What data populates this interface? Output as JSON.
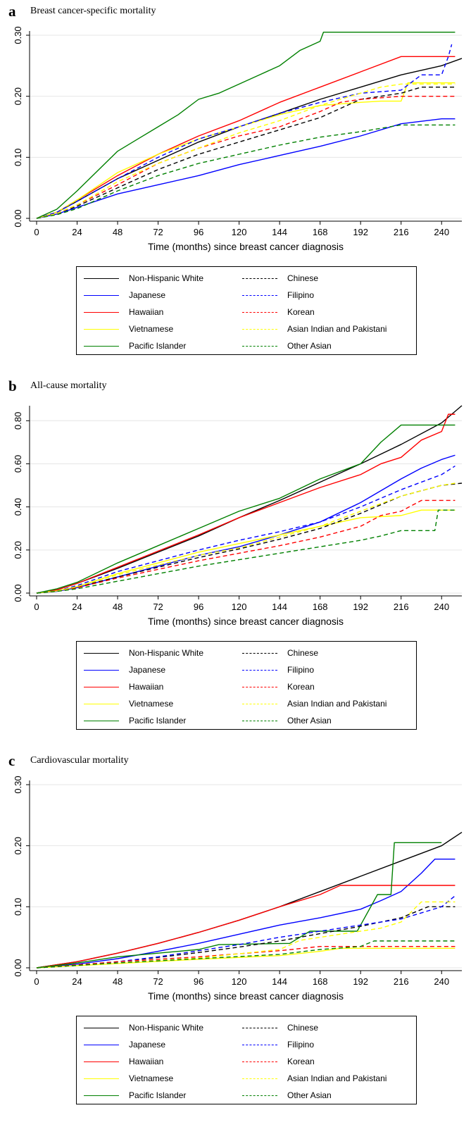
{
  "legend": [
    {
      "name": "Non-Hispanic White",
      "color": "#000000",
      "dashed": false
    },
    {
      "name": "Chinese",
      "color": "#000000",
      "dashed": true
    },
    {
      "name": "Japanese",
      "color": "#0000ff",
      "dashed": false
    },
    {
      "name": "Filipino",
      "color": "#0000ff",
      "dashed": true
    },
    {
      "name": "Hawaiian",
      "color": "#ff0000",
      "dashed": false
    },
    {
      "name": "Korean",
      "color": "#ff0000",
      "dashed": true
    },
    {
      "name": "Vietnamese",
      "color": "#ffff00",
      "dashed": false
    },
    {
      "name": "Asian Indian and Pakistani",
      "color": "#ffff00",
      "dashed": true
    },
    {
      "name": "Pacific Islander",
      "color": "#008000",
      "dashed": false
    },
    {
      "name": "Other Asian",
      "color": "#008000",
      "dashed": true
    }
  ],
  "chart_data": [
    {
      "type": "line",
      "letter": "a",
      "title": "Breast cancer-specific mortality",
      "xlabel": "Time (months) since breast cancer diagnosis",
      "ylabel": "",
      "xlim": [
        0,
        252
      ],
      "ylim": [
        0,
        0.3
      ],
      "xticks": [
        0,
        24,
        48,
        72,
        96,
        120,
        144,
        168,
        192,
        216,
        240
      ],
      "yticks": [
        0,
        0.1,
        0.2,
        0.3
      ],
      "ytick_labels": [
        "0.00",
        "0.10",
        "0.20",
        "0.30"
      ],
      "grid": true,
      "series": [
        {
          "name": "Non-Hispanic White",
          "x": [
            0,
            12,
            24,
            48,
            72,
            96,
            120,
            144,
            168,
            192,
            216,
            240,
            252
          ],
          "y": [
            0,
            0.01,
            0.028,
            0.065,
            0.095,
            0.125,
            0.15,
            0.172,
            0.195,
            0.215,
            0.235,
            0.25,
            0.262
          ]
        },
        {
          "name": "Japanese",
          "x": [
            0,
            12,
            24,
            48,
            72,
            96,
            120,
            144,
            168,
            192,
            216,
            240,
            248
          ],
          "y": [
            0,
            0.007,
            0.018,
            0.04,
            0.055,
            0.07,
            0.088,
            0.103,
            0.118,
            0.135,
            0.155,
            0.163,
            0.163
          ]
        },
        {
          "name": "Hawaiian",
          "x": [
            0,
            12,
            24,
            48,
            72,
            96,
            120,
            144,
            168,
            192,
            216,
            240,
            248
          ],
          "y": [
            0,
            0.01,
            0.03,
            0.07,
            0.105,
            0.135,
            0.16,
            0.19,
            0.215,
            0.24,
            0.265,
            0.265,
            0.265
          ]
        },
        {
          "name": "Vietnamese",
          "x": [
            0,
            12,
            24,
            48,
            72,
            96,
            120,
            144,
            168,
            192,
            204,
            216,
            220,
            248
          ],
          "y": [
            0,
            0.01,
            0.03,
            0.075,
            0.105,
            0.13,
            0.15,
            0.17,
            0.185,
            0.19,
            0.192,
            0.192,
            0.222,
            0.222
          ]
        },
        {
          "name": "Pacific Islander",
          "x": [
            0,
            12,
            24,
            48,
            60,
            72,
            84,
            96,
            108,
            120,
            132,
            144,
            156,
            168,
            170,
            200,
            220,
            232,
            240,
            248
          ],
          "y": [
            0,
            0.015,
            0.045,
            0.11,
            0.13,
            0.15,
            0.17,
            0.195,
            0.205,
            0.22,
            0.235,
            0.25,
            0.275,
            0.29,
            0.305,
            0.305,
            0.305,
            0.305,
            0.305,
            0.305
          ]
        },
        {
          "name": "Chinese",
          "x": [
            0,
            12,
            24,
            48,
            72,
            96,
            120,
            144,
            168,
            192,
            216,
            228,
            248
          ],
          "y": [
            0,
            0.008,
            0.02,
            0.05,
            0.08,
            0.105,
            0.125,
            0.145,
            0.165,
            0.195,
            0.205,
            0.215,
            0.215
          ]
        },
        {
          "name": "Filipino",
          "x": [
            0,
            12,
            24,
            48,
            72,
            96,
            120,
            144,
            168,
            192,
            216,
            228,
            240,
            244,
            246
          ],
          "y": [
            0,
            0.01,
            0.028,
            0.065,
            0.1,
            0.13,
            0.15,
            0.172,
            0.19,
            0.205,
            0.21,
            0.235,
            0.235,
            0.265,
            0.285
          ]
        },
        {
          "name": "Korean",
          "x": [
            0,
            12,
            24,
            48,
            72,
            96,
            120,
            144,
            168,
            180,
            192,
            216,
            248
          ],
          "y": [
            0,
            0.008,
            0.022,
            0.055,
            0.09,
            0.115,
            0.135,
            0.15,
            0.175,
            0.19,
            0.195,
            0.2,
            0.2
          ]
        },
        {
          "name": "Asian Indian and Pakistani",
          "x": [
            0,
            12,
            24,
            48,
            72,
            96,
            120,
            144,
            168,
            192,
            204,
            216,
            248
          ],
          "y": [
            0,
            0.008,
            0.022,
            0.06,
            0.09,
            0.115,
            0.14,
            0.16,
            0.185,
            0.205,
            0.215,
            0.22,
            0.22
          ]
        },
        {
          "name": "Other Asian",
          "x": [
            0,
            12,
            24,
            48,
            72,
            96,
            120,
            144,
            168,
            192,
            216,
            248
          ],
          "y": [
            0,
            0.006,
            0.016,
            0.045,
            0.07,
            0.09,
            0.105,
            0.12,
            0.133,
            0.142,
            0.153,
            0.153
          ]
        }
      ]
    },
    {
      "type": "line",
      "letter": "b",
      "title": "All-cause mortality",
      "xlabel": "Time (months) since breast cancer diagnosis",
      "ylabel": "",
      "xlim": [
        0,
        252
      ],
      "ylim": [
        0,
        0.85
      ],
      "xticks": [
        0,
        24,
        48,
        72,
        96,
        120,
        144,
        168,
        192,
        216,
        240
      ],
      "yticks": [
        0,
        0.2,
        0.4,
        0.6,
        0.8
      ],
      "ytick_labels": [
        "0.00",
        "0.20",
        "0.40",
        "0.60",
        "0.80"
      ],
      "grid": true,
      "series": [
        {
          "name": "Non-Hispanic White",
          "x": [
            0,
            12,
            24,
            48,
            72,
            96,
            120,
            144,
            168,
            192,
            216,
            240,
            252
          ],
          "y": [
            0,
            0.015,
            0.045,
            0.115,
            0.19,
            0.265,
            0.35,
            0.43,
            0.515,
            0.6,
            0.69,
            0.79,
            0.87
          ]
        },
        {
          "name": "Japanese",
          "x": [
            0,
            12,
            24,
            48,
            72,
            96,
            120,
            144,
            168,
            192,
            216,
            228,
            240,
            248
          ],
          "y": [
            0,
            0.008,
            0.025,
            0.075,
            0.125,
            0.175,
            0.215,
            0.27,
            0.33,
            0.42,
            0.53,
            0.58,
            0.62,
            0.64
          ]
        },
        {
          "name": "Hawaiian",
          "x": [
            0,
            12,
            24,
            48,
            72,
            96,
            120,
            144,
            168,
            192,
            204,
            216,
            228,
            240,
            244,
            248
          ],
          "y": [
            0,
            0.015,
            0.045,
            0.12,
            0.195,
            0.27,
            0.35,
            0.42,
            0.49,
            0.55,
            0.6,
            0.63,
            0.71,
            0.75,
            0.83,
            0.83
          ]
        },
        {
          "name": "Vietnamese",
          "x": [
            0,
            12,
            24,
            48,
            72,
            96,
            120,
            144,
            168,
            192,
            216,
            228,
            248
          ],
          "y": [
            0,
            0.01,
            0.03,
            0.09,
            0.14,
            0.19,
            0.23,
            0.27,
            0.31,
            0.35,
            0.36,
            0.385,
            0.385
          ]
        },
        {
          "name": "Pacific Islander",
          "x": [
            0,
            12,
            24,
            48,
            72,
            96,
            120,
            144,
            168,
            192,
            204,
            216,
            240,
            248
          ],
          "y": [
            0,
            0.02,
            0.05,
            0.14,
            0.22,
            0.3,
            0.38,
            0.44,
            0.53,
            0.6,
            0.7,
            0.78,
            0.78,
            0.78
          ]
        },
        {
          "name": "Chinese",
          "x": [
            0,
            12,
            24,
            48,
            72,
            96,
            120,
            144,
            168,
            192,
            216,
            240,
            252
          ],
          "y": [
            0,
            0.01,
            0.028,
            0.075,
            0.12,
            0.165,
            0.205,
            0.25,
            0.3,
            0.37,
            0.45,
            0.5,
            0.51
          ]
        },
        {
          "name": "Filipino",
          "x": [
            0,
            12,
            24,
            48,
            72,
            96,
            120,
            144,
            168,
            192,
            216,
            240,
            248
          ],
          "y": [
            0,
            0.01,
            0.035,
            0.1,
            0.15,
            0.2,
            0.245,
            0.285,
            0.33,
            0.4,
            0.48,
            0.55,
            0.59
          ]
        },
        {
          "name": "Korean",
          "x": [
            0,
            12,
            24,
            48,
            72,
            96,
            120,
            144,
            168,
            192,
            204,
            216,
            228,
            248
          ],
          "y": [
            0,
            0.008,
            0.025,
            0.07,
            0.11,
            0.15,
            0.185,
            0.22,
            0.26,
            0.31,
            0.36,
            0.38,
            0.43,
            0.43
          ]
        },
        {
          "name": "Asian Indian and Pakistani",
          "x": [
            0,
            12,
            24,
            48,
            72,
            96,
            120,
            144,
            168,
            192,
            216,
            240,
            248
          ],
          "y": [
            0,
            0.01,
            0.03,
            0.085,
            0.13,
            0.175,
            0.21,
            0.26,
            0.31,
            0.38,
            0.45,
            0.5,
            0.51
          ]
        },
        {
          "name": "Other Asian",
          "x": [
            0,
            12,
            24,
            48,
            72,
            96,
            120,
            144,
            168,
            192,
            204,
            216,
            228,
            236,
            238,
            248
          ],
          "y": [
            0,
            0.008,
            0.02,
            0.055,
            0.09,
            0.125,
            0.155,
            0.185,
            0.215,
            0.245,
            0.265,
            0.29,
            0.29,
            0.29,
            0.385,
            0.385
          ]
        }
      ]
    },
    {
      "type": "line",
      "letter": "c",
      "title": "Cardiovascular mortality",
      "xlabel": "Time (months) since breast cancer diagnosis",
      "ylabel": "",
      "xlim": [
        0,
        252
      ],
      "ylim": [
        0,
        0.3
      ],
      "xticks": [
        0,
        24,
        48,
        72,
        96,
        120,
        144,
        168,
        192,
        216,
        240
      ],
      "yticks": [
        0,
        0.1,
        0.2,
        0.3
      ],
      "ytick_labels": [
        "0.00",
        "0.10",
        "0.20",
        "0.30"
      ],
      "grid": true,
      "series": [
        {
          "name": "Non-Hispanic White",
          "x": [
            0,
            24,
            48,
            72,
            96,
            120,
            144,
            168,
            192,
            216,
            240,
            252
          ],
          "y": [
            0,
            0.01,
            0.024,
            0.04,
            0.058,
            0.078,
            0.1,
            0.125,
            0.15,
            0.175,
            0.2,
            0.222
          ]
        },
        {
          "name": "Japanese",
          "x": [
            0,
            24,
            48,
            72,
            96,
            120,
            144,
            168,
            192,
            204,
            216,
            228,
            236,
            248
          ],
          "y": [
            0,
            0.006,
            0.015,
            0.027,
            0.04,
            0.055,
            0.07,
            0.082,
            0.096,
            0.11,
            0.125,
            0.155,
            0.178,
            0.178
          ]
        },
        {
          "name": "Hawaiian",
          "x": [
            0,
            24,
            48,
            72,
            96,
            120,
            144,
            168,
            180,
            216,
            248
          ],
          "y": [
            0,
            0.01,
            0.024,
            0.04,
            0.058,
            0.078,
            0.1,
            0.12,
            0.135,
            0.135,
            0.135
          ]
        },
        {
          "name": "Vietnamese",
          "x": [
            0,
            48,
            96,
            144,
            168,
            180,
            216,
            248
          ],
          "y": [
            0,
            0.007,
            0.014,
            0.02,
            0.027,
            0.032,
            0.032,
            0.032
          ]
        },
        {
          "name": "Pacific Islander",
          "x": [
            0,
            24,
            48,
            72,
            96,
            108,
            150,
            162,
            190,
            202,
            210,
            212,
            240
          ],
          "y": [
            0,
            0.008,
            0.018,
            0.024,
            0.03,
            0.038,
            0.04,
            0.06,
            0.06,
            0.12,
            0.12,
            0.205,
            0.205
          ]
        },
        {
          "name": "Chinese",
          "x": [
            0,
            24,
            48,
            72,
            96,
            120,
            144,
            168,
            192,
            216,
            232,
            248
          ],
          "y": [
            0,
            0.004,
            0.01,
            0.017,
            0.025,
            0.034,
            0.044,
            0.056,
            0.068,
            0.082,
            0.1,
            0.1
          ]
        },
        {
          "name": "Filipino",
          "x": [
            0,
            24,
            48,
            72,
            96,
            120,
            144,
            168,
            192,
            216,
            240,
            248
          ],
          "y": [
            0,
            0.004,
            0.01,
            0.018,
            0.028,
            0.038,
            0.05,
            0.06,
            0.07,
            0.08,
            0.1,
            0.118
          ]
        },
        {
          "name": "Korean",
          "x": [
            0,
            48,
            96,
            144,
            168,
            248
          ],
          "y": [
            0,
            0.01,
            0.018,
            0.028,
            0.035,
            0.035
          ]
        },
        {
          "name": "Asian Indian and Pakistani",
          "x": [
            0,
            48,
            96,
            144,
            156,
            180,
            204,
            216,
            228,
            248
          ],
          "y": [
            0,
            0.008,
            0.016,
            0.03,
            0.045,
            0.055,
            0.065,
            0.075,
            0.108,
            0.108
          ]
        },
        {
          "name": "Other Asian",
          "x": [
            0,
            48,
            96,
            144,
            168,
            192,
            200,
            248
          ],
          "y": [
            0,
            0.008,
            0.015,
            0.022,
            0.03,
            0.035,
            0.044,
            0.044
          ]
        }
      ]
    }
  ]
}
